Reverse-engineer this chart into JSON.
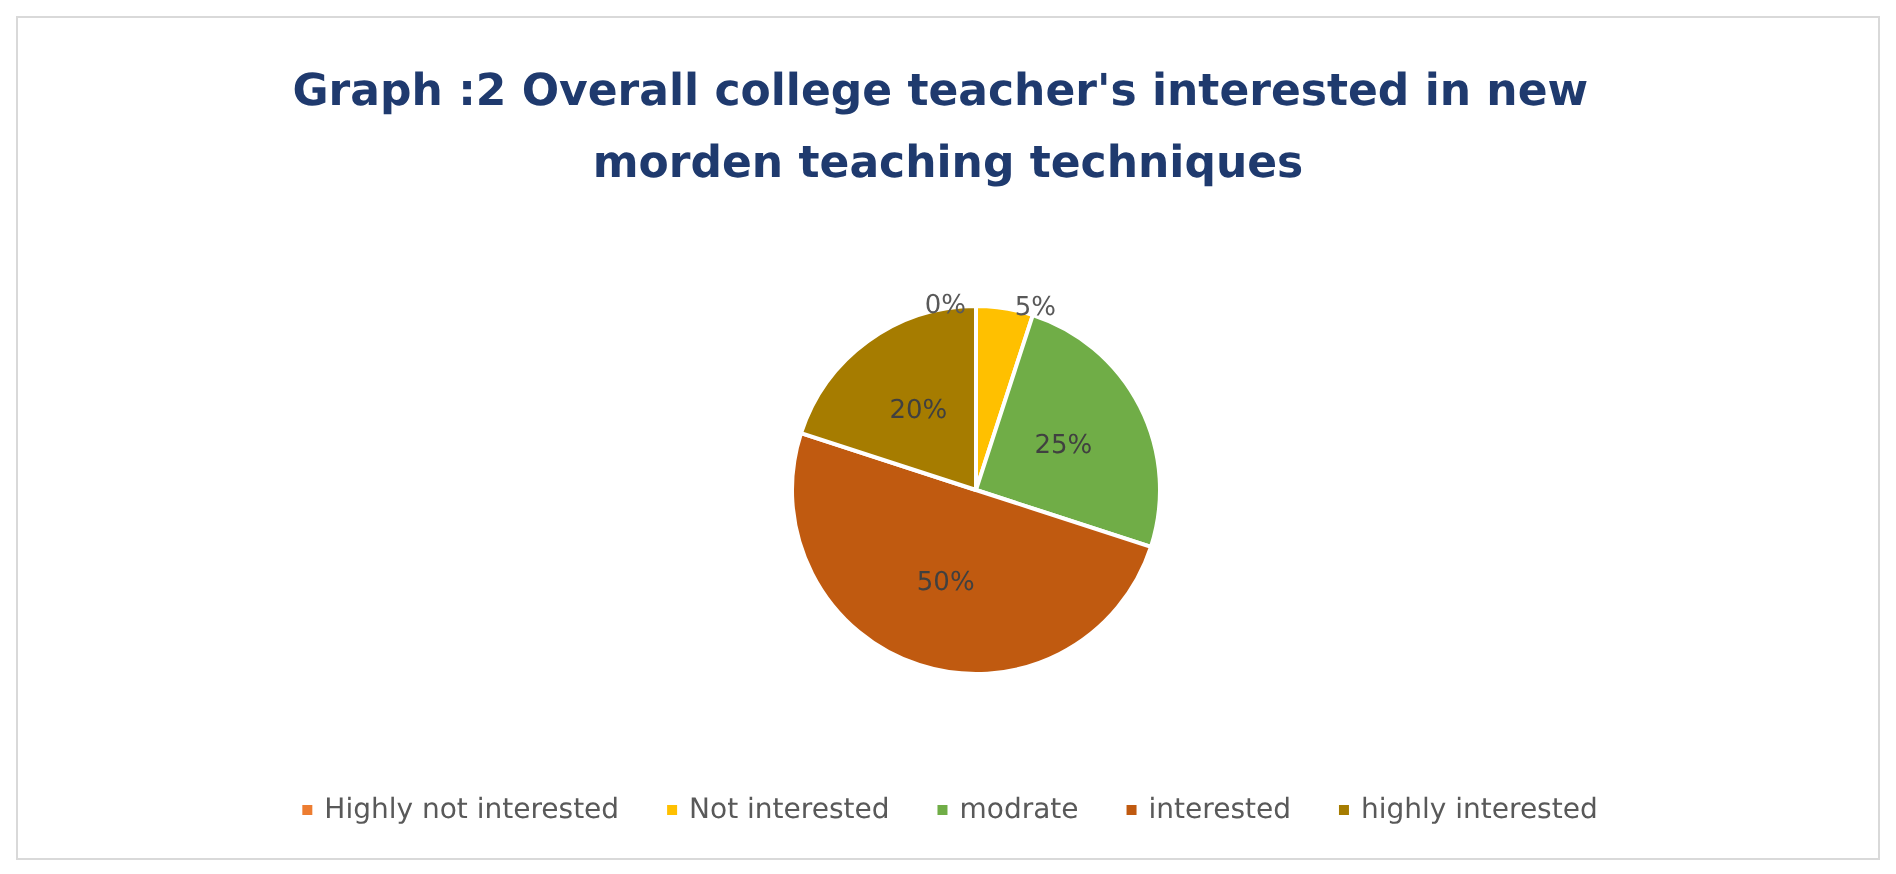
{
  "chart_data": {
    "type": "pie",
    "title": "Graph :2 Overall college teacher's interested in new morden teaching techniques",
    "categories": [
      "Highly not interested",
      "Not interested",
      "modrate",
      "interested",
      "highly interested"
    ],
    "values": [
      0,
      5,
      25,
      50,
      20
    ],
    "colors": [
      "#ed7d31",
      "#ffc000",
      "#70ad47",
      "#c05a10",
      "#a67c00"
    ],
    "value_labels": [
      "0%",
      "5%",
      "25%",
      "50%",
      "20%"
    ],
    "legend": "bottom"
  }
}
